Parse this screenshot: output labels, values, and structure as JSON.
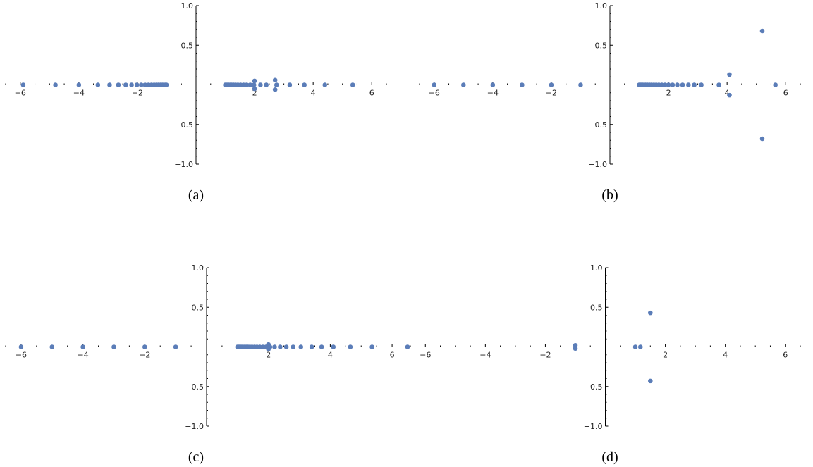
{
  "chart_data": [
    {
      "panel": "a",
      "caption": "(a)",
      "type": "scatter",
      "title": "",
      "xlabel": "",
      "ylabel": "",
      "xlim": [
        -6.5,
        6.5
      ],
      "ylim": [
        -1,
        1
      ],
      "xticks": [
        -6,
        -4,
        -2,
        2,
        4,
        6
      ],
      "yticks": [
        -1.0,
        -0.5,
        0.5,
        1.0
      ],
      "x_tick_labels": [
        "−6",
        "−4",
        "−2",
        "2",
        "4",
        "6"
      ],
      "y_tick_labels": [
        "−1.0",
        "−0.5",
        "0.5",
        "1.0"
      ],
      "grid": false,
      "marker_color": "#5b7db8",
      "points": [
        [
          -5.9,
          0
        ],
        [
          -4.8,
          0
        ],
        [
          -4.0,
          0
        ],
        [
          -3.35,
          0
        ],
        [
          -2.95,
          0
        ],
        [
          -2.65,
          0
        ],
        [
          -2.4,
          0
        ],
        [
          -2.2,
          0
        ],
        [
          -2.02,
          0
        ],
        [
          -1.87,
          0
        ],
        [
          -1.74,
          0
        ],
        [
          -1.62,
          0
        ],
        [
          -1.52,
          0
        ],
        [
          -1.43,
          0
        ],
        [
          -1.35,
          0
        ],
        [
          -1.28,
          0
        ],
        [
          -1.21,
          0
        ],
        [
          -1.15,
          0
        ],
        [
          -1.1,
          0
        ],
        [
          -1.05,
          0
        ],
        [
          -1.01,
          0
        ],
        [
          1.0,
          0
        ],
        [
          1.04,
          0
        ],
        [
          1.08,
          0
        ],
        [
          1.12,
          0
        ],
        [
          1.17,
          0
        ],
        [
          1.22,
          0
        ],
        [
          1.28,
          0
        ],
        [
          1.35,
          0
        ],
        [
          1.43,
          0
        ],
        [
          1.52,
          0
        ],
        [
          1.62,
          0
        ],
        [
          1.73,
          0
        ],
        [
          1.85,
          0
        ],
        [
          1.98,
          0
        ],
        [
          2.0,
          0.05
        ],
        [
          2.0,
          -0.05
        ],
        [
          2.2,
          0
        ],
        [
          2.4,
          0
        ],
        [
          2.7,
          0.06
        ],
        [
          2.7,
          -0.06
        ],
        [
          2.75,
          0
        ],
        [
          3.2,
          0
        ],
        [
          3.7,
          0
        ],
        [
          4.4,
          0
        ],
        [
          5.35,
          0
        ]
      ]
    },
    {
      "panel": "b",
      "caption": "(b)",
      "type": "scatter",
      "title": "",
      "xlabel": "",
      "ylabel": "",
      "xlim": [
        -6.5,
        6.5
      ],
      "ylim": [
        -1,
        1
      ],
      "xticks": [
        -6,
        -4,
        -2,
        2,
        4,
        6
      ],
      "yticks": [
        -1.0,
        -0.5,
        0.5,
        1.0
      ],
      "x_tick_labels": [
        "−6",
        "−4",
        "−2",
        "2",
        "4",
        "6"
      ],
      "y_tick_labels": [
        "−1.0",
        "−0.5",
        "0.5",
        "1.0"
      ],
      "grid": false,
      "marker_color": "#5b7db8",
      "points": [
        [
          -6.0,
          0
        ],
        [
          -5.0,
          0
        ],
        [
          -4.0,
          0
        ],
        [
          -3.0,
          0
        ],
        [
          -2.0,
          0
        ],
        [
          -1.0,
          0
        ],
        [
          1.0,
          0
        ],
        [
          1.04,
          0
        ],
        [
          1.08,
          0
        ],
        [
          1.12,
          0
        ],
        [
          1.17,
          0
        ],
        [
          1.22,
          0
        ],
        [
          1.28,
          0
        ],
        [
          1.35,
          0
        ],
        [
          1.42,
          0
        ],
        [
          1.5,
          0
        ],
        [
          1.58,
          0
        ],
        [
          1.67,
          0
        ],
        [
          1.77,
          0
        ],
        [
          1.88,
          0
        ],
        [
          2.0,
          0
        ],
        [
          2.14,
          0
        ],
        [
          2.3,
          0
        ],
        [
          2.48,
          0
        ],
        [
          2.68,
          0
        ],
        [
          2.88,
          0
        ],
        [
          3.12,
          0
        ],
        [
          3.72,
          0
        ],
        [
          4.08,
          0.13
        ],
        [
          4.08,
          -0.13
        ],
        [
          5.2,
          0.68
        ],
        [
          5.2,
          -0.68
        ],
        [
          5.65,
          0
        ]
      ]
    },
    {
      "panel": "c",
      "caption": "(c)",
      "type": "scatter",
      "title": "",
      "xlabel": "",
      "ylabel": "",
      "xlim": [
        -6.5,
        6.5
      ],
      "ylim": [
        -1,
        1
      ],
      "xticks": [
        -6,
        -4,
        -2,
        2,
        4,
        6
      ],
      "yticks": [
        -1.0,
        -0.5,
        0.5,
        1.0
      ],
      "x_tick_labels": [
        "−6",
        "−4",
        "−2",
        "2",
        "4",
        "6"
      ],
      "y_tick_labels": [
        "−1.0",
        "−0.5",
        "0.5",
        "1.0"
      ],
      "grid": false,
      "marker_color": "#5b7db8",
      "points": [
        [
          -6.0,
          0
        ],
        [
          -5.0,
          0
        ],
        [
          -4.0,
          0
        ],
        [
          -3.0,
          0
        ],
        [
          -2.0,
          0
        ],
        [
          -1.0,
          0
        ],
        [
          1.0,
          0
        ],
        [
          1.03,
          0
        ],
        [
          1.06,
          0
        ],
        [
          1.1,
          0
        ],
        [
          1.14,
          0
        ],
        [
          1.18,
          0
        ],
        [
          1.23,
          0
        ],
        [
          1.28,
          0
        ],
        [
          1.34,
          0
        ],
        [
          1.4,
          0
        ],
        [
          1.47,
          0
        ],
        [
          1.55,
          0
        ],
        [
          1.63,
          0
        ],
        [
          1.72,
          0
        ],
        [
          1.82,
          0
        ],
        [
          1.92,
          0
        ],
        [
          2.0,
          0.03
        ],
        [
          2.0,
          -0.03
        ],
        [
          2.05,
          0
        ],
        [
          2.2,
          0
        ],
        [
          2.38,
          0
        ],
        [
          2.58,
          0
        ],
        [
          2.8,
          0
        ],
        [
          3.05,
          0
        ],
        [
          3.4,
          0
        ],
        [
          3.72,
          0
        ],
        [
          4.1,
          0
        ],
        [
          4.65,
          0
        ],
        [
          5.35,
          0
        ],
        [
          6.5,
          0
        ]
      ]
    },
    {
      "panel": "d",
      "caption": "(d)",
      "type": "scatter",
      "title": "",
      "xlabel": "",
      "ylabel": "",
      "xlim": [
        -6.5,
        6.5
      ],
      "ylim": [
        -1,
        1
      ],
      "xticks": [
        -6,
        -4,
        -2,
        2,
        4,
        6
      ],
      "yticks": [
        -1.0,
        -0.5,
        0.5,
        1.0
      ],
      "x_tick_labels": [
        "−6",
        "−4",
        "−2",
        "2",
        "4",
        "6"
      ],
      "y_tick_labels": [
        "−1.0",
        "−0.5",
        "0.5",
        "1.0"
      ],
      "grid": false,
      "marker_color": "#5b7db8",
      "points": [
        [
          -1.0,
          0.02
        ],
        [
          -1.0,
          -0.02
        ],
        [
          1.0,
          0
        ],
        [
          1.17,
          0
        ],
        [
          1.5,
          0.43
        ],
        [
          1.5,
          -0.43
        ]
      ]
    }
  ]
}
